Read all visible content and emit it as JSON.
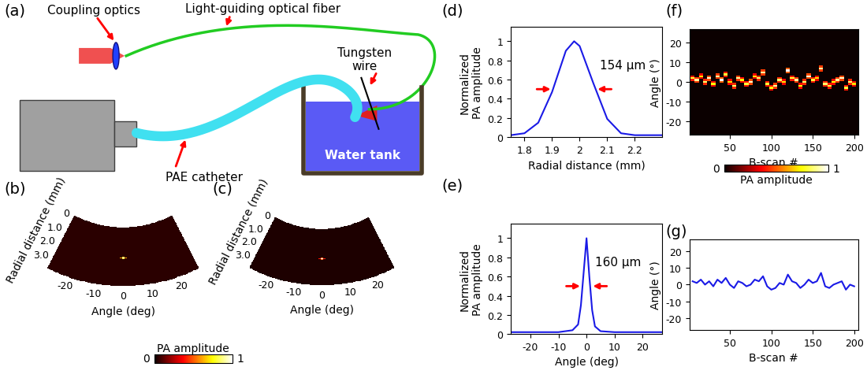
{
  "diagram": {
    "label": "(a)",
    "texts": {
      "coupling_optics": "Coupling optics",
      "fiber": "Light-guiding optical fiber",
      "wire": "Tungsten\nwire",
      "catheter": "PAE catheter",
      "tank": "Water tank"
    }
  },
  "chart_data": [
    {
      "label": "(b)",
      "type": "fan_image",
      "xlabel": "Angle (deg)",
      "ylabel": "Radial distance (mm)",
      "xlim": [
        -27,
        27
      ],
      "xticks": [
        -20,
        -10,
        0,
        10,
        20
      ],
      "ylim": [
        0,
        3.8
      ],
      "yticks": [
        0,
        {
          "value": 1,
          "label": "1.0"
        },
        {
          "value": 2,
          "label": "2.0"
        },
        {
          "value": 3,
          "label": "3.0"
        }
      ],
      "background": 0.05,
      "cells": [
        {
          "angle": 0,
          "radial_distance": 2.0,
          "value": 1
        },
        {
          "angle": -1,
          "radial_distance": 2.0,
          "value": 0.6
        },
        {
          "angle": 1,
          "radial_distance": 2.0,
          "value": 0.6
        },
        {
          "angle": 0,
          "radial_distance": 1.95,
          "value": 0.7
        },
        {
          "angle": 0,
          "radial_distance": 2.05,
          "value": 0.7
        }
      ],
      "colorbar": {
        "label": "PA amplitude",
        "range": [
          0,
          1
        ],
        "ticks": [
          0,
          1
        ]
      }
    },
    {
      "label": "(c)",
      "type": "fan_image",
      "xlabel": "Angle (deg)",
      "ylabel": "Radial distance (mm)",
      "xlim": [
        -27,
        27
      ],
      "xticks": [
        -20,
        -10,
        0,
        10,
        20
      ],
      "ylim": [
        0,
        3.8
      ],
      "yticks": [
        0,
        {
          "value": 1,
          "label": "1.0"
        },
        {
          "value": 2,
          "label": "2.0"
        },
        {
          "value": 3,
          "label": "3.0"
        }
      ],
      "background": 0.03,
      "cells": [
        {
          "angle": 0,
          "radial_distance": 2.0,
          "value": 1
        },
        {
          "angle": -1,
          "radial_distance": 2.0,
          "value": 0.4
        },
        {
          "angle": 1,
          "radial_distance": 2.0,
          "value": 0.4
        },
        {
          "angle": 0,
          "radial_distance": 1.95,
          "value": 0.5
        },
        {
          "angle": 0,
          "radial_distance": 2.05,
          "value": 0.5
        }
      ]
    },
    {
      "label": "(d)",
      "type": "line",
      "xlabel": "Radial distance (mm)",
      "ylabel": "Normalized\nPA amplitude",
      "x": [
        1.75,
        1.8,
        1.85,
        1.9,
        1.95,
        1.98,
        2.0,
        2.05,
        2.1,
        2.15,
        2.2,
        2.25,
        2.3
      ],
      "values": [
        0.02,
        0.04,
        0.15,
        0.47,
        0.9,
        1.0,
        0.95,
        0.56,
        0.19,
        0.04,
        0.02,
        0.02,
        0.02
      ],
      "color": "#1a1ae6",
      "xlim": [
        1.75,
        2.3
      ],
      "xticks": [
        1.8,
        1.9,
        2,
        2.1,
        2.2
      ],
      "ylim": [
        0,
        1.15
      ],
      "yticks": [
        0,
        0.2,
        0.4,
        0.6,
        0.8,
        1
      ],
      "annotation": "154 μm",
      "fwhm_range": [
        1.903,
        2.057
      ]
    },
    {
      "label": "(e)",
      "type": "line",
      "xlabel": "Angle (deg)",
      "ylabel": "Normalized\nPA amplitude",
      "x": [
        -27,
        -10,
        -5,
        -3,
        -2,
        -1,
        0,
        1,
        2,
        3,
        5,
        10,
        27
      ],
      "values": [
        0.02,
        0.02,
        0.04,
        0.1,
        0.3,
        0.65,
        1.0,
        0.6,
        0.25,
        0.08,
        0.03,
        0.02,
        0.02
      ],
      "color": "#1a1ae6",
      "xlim": [
        -27,
        27
      ],
      "xticks": [
        -20,
        -10,
        0,
        10,
        20
      ],
      "ylim": [
        0,
        1.15
      ],
      "yticks": [
        0,
        0.2,
        0.4,
        0.6,
        0.8,
        1
      ],
      "annotation": "160 μm",
      "fwhm_range": [
        -1.5,
        1.5
      ]
    },
    {
      "label": "(f)",
      "type": "heatmap",
      "xlabel": "B-scan #",
      "ylabel": "Angle (°)",
      "x": [
        5,
        10,
        15,
        20,
        25,
        30,
        35,
        40,
        45,
        50,
        55,
        60,
        65,
        70,
        75,
        80,
        85,
        90,
        95,
        100,
        105,
        110,
        115,
        120,
        125,
        130,
        135,
        140,
        145,
        150,
        155,
        160,
        165,
        170,
        175,
        180,
        185,
        190,
        195,
        200
      ],
      "peak_angle": [
        2,
        1,
        3,
        0,
        2,
        -1,
        3,
        1,
        4,
        0,
        -2,
        2,
        1,
        -1,
        0,
        3,
        2,
        5,
        -1,
        -3,
        -2,
        1,
        0,
        6,
        2,
        1,
        -2,
        0,
        3,
        1,
        2,
        7,
        -1,
        -2,
        0,
        1,
        2,
        -3,
        0,
        -1
      ],
      "peak_amplitude": [
        0.8,
        0.9,
        0.7,
        0.85,
        0.95,
        0.75,
        0.9,
        1,
        0.8,
        0.7,
        0.85,
        0.9,
        0.75,
        0.8,
        0.95,
        0.7,
        0.85,
        0.9,
        0.8,
        0.75,
        0.9,
        0.85,
        0.7,
        1,
        0.8,
        0.9,
        0.75,
        0.85,
        0.95,
        0.8,
        0.7,
        0.9,
        0.85,
        0.8,
        0.75,
        0.9,
        0.95,
        0.8,
        0.85,
        0.7
      ],
      "xlim": [
        1,
        205
      ],
      "xticks": [
        50,
        100,
        150,
        200
      ],
      "ylim": [
        -27,
        27
      ],
      "yticks": [
        -20,
        -10,
        0,
        10,
        20
      ],
      "colorbar": {
        "label": "PA amplitude",
        "range": [
          0,
          1
        ],
        "ticks": [
          0,
          1
        ]
      }
    },
    {
      "label": "(g)",
      "type": "line",
      "xlabel": "B-scan #",
      "ylabel": "Angle (°)",
      "x": [
        5,
        10,
        15,
        20,
        25,
        30,
        35,
        40,
        45,
        50,
        55,
        60,
        65,
        70,
        75,
        80,
        85,
        90,
        95,
        100,
        105,
        110,
        115,
        120,
        125,
        130,
        135,
        140,
        145,
        150,
        155,
        160,
        165,
        170,
        175,
        180,
        185,
        190,
        195,
        200
      ],
      "values": [
        2,
        1,
        3,
        0,
        2,
        -1,
        3,
        1,
        4,
        0,
        -2,
        2,
        1,
        -1,
        0,
        3,
        2,
        5,
        -1,
        -3,
        -2,
        1,
        0,
        6,
        2,
        1,
        -2,
        0,
        3,
        1,
        2,
        7,
        -1,
        -2,
        0,
        1,
        2,
        -3,
        0,
        -1
      ],
      "color": "#1a1ae6",
      "xlim": [
        1,
        205
      ],
      "xticks": [
        50,
        100,
        150,
        200
      ],
      "ylim": [
        -27,
        27
      ],
      "yticks": [
        -20,
        -10,
        0,
        10,
        20
      ]
    }
  ]
}
